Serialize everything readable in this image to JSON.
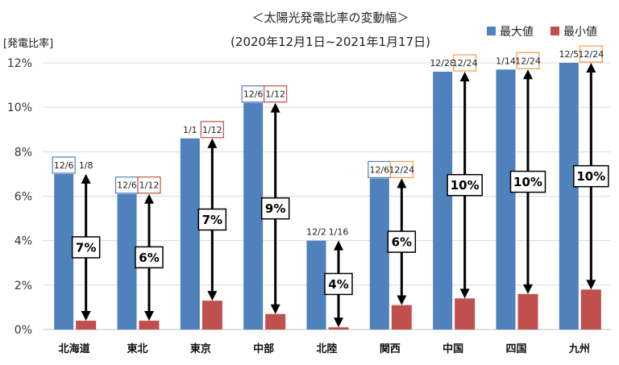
{
  "chart_data": {
    "type": "bar",
    "title": "＜太陽光発電比率の変動幅＞",
    "subtitle": "(2020年12月1日~2021年1月17日)",
    "ylabel": "[発電比率]",
    "xlabel": "",
    "ylim": [
      0,
      12
    ],
    "yticks": [
      0,
      2,
      4,
      6,
      8,
      10,
      12
    ],
    "ytick_labels": [
      "0%",
      "2%",
      "4%",
      "6%",
      "8%",
      "10%",
      "12%"
    ],
    "grid": true,
    "legend_position": "top-right",
    "categories": [
      "北海道",
      "東北",
      "東京",
      "中部",
      "北陸",
      "関西",
      "中国",
      "四国",
      "九州"
    ],
    "series": [
      {
        "name": "最大値",
        "color": "#4f81bd",
        "values": [
          7.0,
          6.1,
          8.6,
          10.2,
          4.0,
          6.8,
          11.6,
          11.7,
          12.0
        ],
        "date_labels": [
          "12/6",
          "12/6",
          "1/1",
          "12/6",
          "12/2",
          "12/6",
          "12/28",
          "1/14",
          "12/5"
        ],
        "date_label_box_colors": [
          "#4f81bd",
          "#4f81bd",
          null,
          "#4f81bd",
          null,
          "#4f81bd",
          null,
          null,
          null
        ]
      },
      {
        "name": "最小値",
        "color": "#c0504d",
        "values": [
          0.4,
          0.4,
          1.3,
          0.7,
          0.1,
          1.1,
          1.4,
          1.6,
          1.8
        ],
        "date_labels": [
          "1/8",
          "1/12",
          "1/12",
          "1/12",
          "1/16",
          "12/24",
          "12/24",
          "12/24",
          "12/24"
        ],
        "date_label_box_colors": [
          null,
          "#c0504d",
          "#c0504d",
          "#c0504d",
          null,
          "#f79646",
          "#f79646",
          "#f79646",
          "#f79646"
        ]
      }
    ],
    "range_labels": [
      "7%",
      "6%",
      "7%",
      "9%",
      "4%",
      "6%",
      "10%",
      "10%",
      "10%"
    ]
  }
}
